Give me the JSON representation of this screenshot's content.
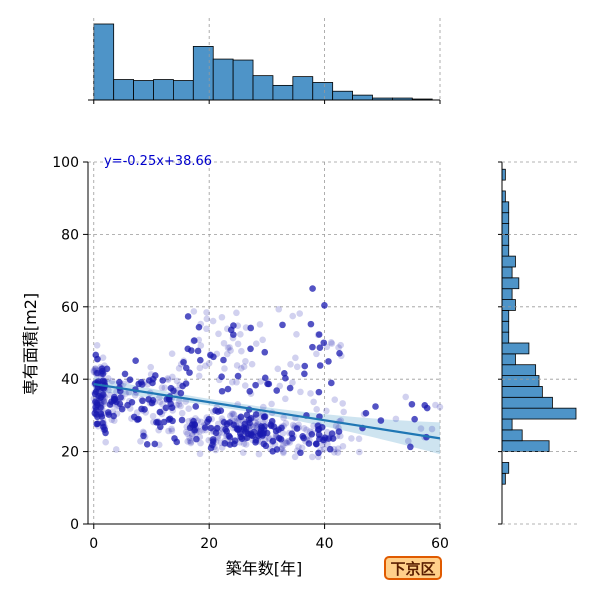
{
  "chart_data": {
    "type": "scatter",
    "xlabel": "築年数[年]",
    "ylabel": "専有面積[m2]",
    "xlim": [
      -1,
      60
    ],
    "ylim": [
      0,
      100
    ],
    "xticks": [
      0,
      20,
      40,
      60
    ],
    "yticks": [
      0,
      20,
      40,
      60,
      80,
      100
    ],
    "grid": true,
    "regression": {
      "label": "y=-0.25x+38.66",
      "slope": -0.25,
      "intercept": 38.66,
      "color": "#1f77b4",
      "ci_color": "#9ecae1"
    },
    "point_color": "#1a1ab0",
    "hist_color": "#4e94c8",
    "x_histogram": {
      "bin_width": 3.45,
      "start": 0,
      "counts": [
        78,
        21,
        20,
        21,
        20,
        55,
        42,
        41,
        25,
        15,
        24,
        18,
        9,
        5,
        2,
        2,
        1
      ]
    },
    "y_histogram": {
      "bin_width": 3.0,
      "start": 11,
      "counts": [
        1,
        2,
        0,
        14,
        6,
        3,
        22,
        15,
        12,
        11,
        10,
        4,
        8,
        2,
        2,
        2,
        4,
        3,
        5,
        3,
        4,
        2,
        2,
        2,
        2,
        2,
        1,
        0,
        1,
        0,
        0,
        0,
        0,
        0,
        0,
        0,
        0,
        0,
        0,
        0
      ]
    }
  },
  "badge": {
    "label": "下京区"
  }
}
